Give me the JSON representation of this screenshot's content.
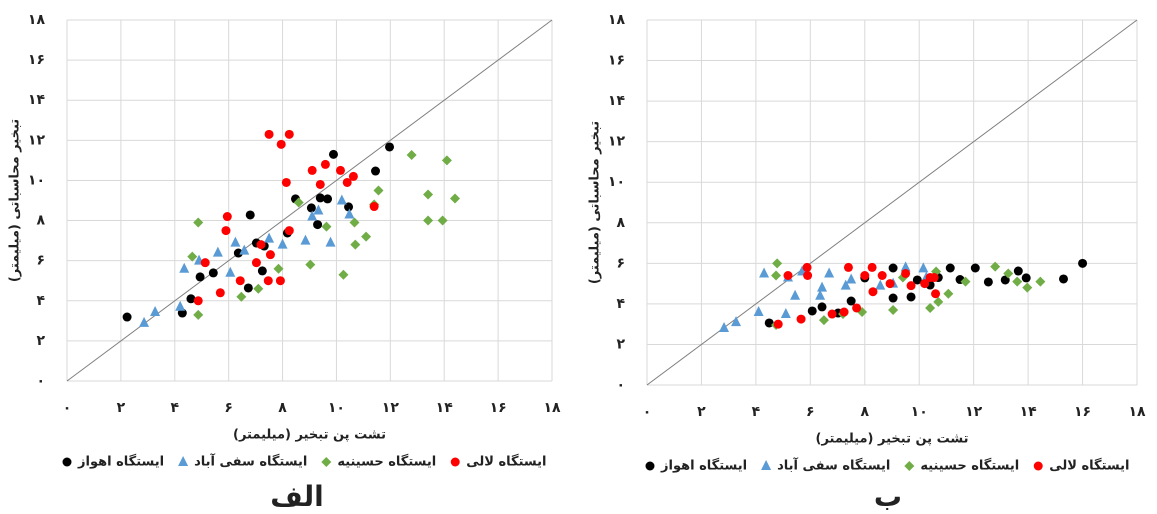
{
  "chart_data": [
    {
      "type": "scatter",
      "panel_label": "الف",
      "x_label": "تشت پن تبخیر (میلیمتر)",
      "y_label": "تبخیر محاسباتی (میلیمتر)",
      "xlim": [
        0,
        18
      ],
      "ylim": [
        0,
        18
      ],
      "xticks": [
        {
          "value": 0,
          "label": "۰"
        },
        {
          "value": 2,
          "label": "۲"
        },
        {
          "value": 4,
          "label": "۴"
        },
        {
          "value": 6,
          "label": "۶"
        },
        {
          "value": 8,
          "label": "۸"
        },
        {
          "value": 10,
          "label": "۱۰"
        },
        {
          "value": 12,
          "label": "۱۲"
        },
        {
          "value": 14,
          "label": "۱۴"
        },
        {
          "value": 16,
          "label": "۱۶"
        },
        {
          "value": 18,
          "label": "۱۸"
        }
      ],
      "yticks": [
        {
          "value": 0,
          "label": "۰"
        },
        {
          "value": 2,
          "label": "۲"
        },
        {
          "value": 4,
          "label": "۴"
        },
        {
          "value": 6,
          "label": "۶"
        },
        {
          "value": 8,
          "label": "۸"
        },
        {
          "value": 10,
          "label": "۱۰"
        },
        {
          "value": 12,
          "label": "۱۲"
        },
        {
          "value": 14,
          "label": "۱۴"
        },
        {
          "value": 16,
          "label": "۱۶"
        },
        {
          "value": 18,
          "label": "۱۸"
        }
      ],
      "grid": true,
      "series": [
        {
          "name": "ایستگاه اهواز",
          "color": "#000000",
          "marker": "circle",
          "x": [
            2.23,
            4.28,
            4.6,
            4.94,
            5.43,
            6.36,
            6.8,
            7.03,
            7.25,
            6.73,
            8.18,
            8.48,
            9.07,
            9.4,
            9.67,
            9.89,
            10.45,
            11.45,
            11.97,
            7.32,
            9.3
          ],
          "values": [
            3.19,
            3.39,
            4.1,
            5.19,
            5.39,
            6.38,
            8.28,
            6.88,
            5.49,
            4.64,
            7.38,
            9.08,
            8.63,
            9.13,
            9.08,
            11.3,
            8.68,
            10.47,
            11.67,
            6.73,
            7.8
          ]
        },
        {
          "name": "ایستگاه سفی آباد",
          "color": "#5b9bd5",
          "marker": "triangle",
          "x": [
            2.86,
            3.27,
            4.2,
            4.35,
            4.9,
            5.6,
            6.06,
            6.25,
            6.58,
            7.5,
            8.0,
            8.85,
            9.1,
            9.33,
            9.78,
            10.48,
            10.2
          ],
          "values": [
            2.9,
            3.44,
            3.7,
            5.6,
            6.0,
            6.4,
            5.4,
            6.9,
            6.5,
            7.1,
            6.8,
            7.0,
            8.2,
            8.5,
            6.9,
            8.3,
            9.0
          ]
        },
        {
          "name": "ایستگاه حسینیه",
          "color": "#70ad47",
          "marker": "diamond",
          "x": [
            4.87,
            4.87,
            4.65,
            6.47,
            7.1,
            7.85,
            8.6,
            9.03,
            9.63,
            10.26,
            10.7,
            11.1,
            11.4,
            11.56,
            12.79,
            13.4,
            14.1,
            14.4,
            13.4,
            13.94,
            10.67
          ],
          "values": [
            3.3,
            7.9,
            6.2,
            4.2,
            4.6,
            5.6,
            8.9,
            5.8,
            7.7,
            5.3,
            6.8,
            7.2,
            8.8,
            9.5,
            11.27,
            9.3,
            11.0,
            9.1,
            8.0,
            8.0,
            7.9
          ]
        },
        {
          "name": "ایستگاه لالی",
          "color": "#ff0000",
          "marker": "circle",
          "x": [
            7.5,
            8.25,
            7.95,
            4.87,
            5.13,
            5.69,
            5.95,
            5.9,
            6.43,
            7.03,
            7.55,
            7.47,
            7.92,
            8.14,
            8.25,
            9.1,
            9.4,
            9.59,
            10.15,
            10.4,
            10.63,
            11.4,
            7.2
          ],
          "values": [
            12.3,
            12.3,
            11.8,
            4.0,
            5.9,
            4.4,
            8.2,
            7.5,
            5.0,
            5.9,
            6.3,
            5.0,
            5.0,
            9.9,
            7.5,
            10.5,
            9.8,
            10.8,
            10.5,
            9.9,
            10.2,
            8.7,
            6.8
          ]
        }
      ]
    },
    {
      "type": "scatter",
      "panel_label": "ب",
      "x_label": "تشت پن تبخیر (میلیمتر)",
      "y_label": "تبخیر محاسباتی (میلیمتر)",
      "xlim": [
        0,
        18
      ],
      "ylim": [
        0,
        18
      ],
      "xticks": [
        {
          "value": 0,
          "label": "۰"
        },
        {
          "value": 2,
          "label": "۲"
        },
        {
          "value": 4,
          "label": "۴"
        },
        {
          "value": 6,
          "label": "۶"
        },
        {
          "value": 8,
          "label": "۸"
        },
        {
          "value": 10,
          "label": "۱۰"
        },
        {
          "value": 12,
          "label": "۱۲"
        },
        {
          "value": 14,
          "label": "۱۴"
        },
        {
          "value": 16,
          "label": "۱۶"
        },
        {
          "value": 18,
          "label": "۱۸"
        }
      ],
      "yticks": [
        {
          "value": 0,
          "label": "۰"
        },
        {
          "value": 2,
          "label": "۲"
        },
        {
          "value": 4,
          "label": "۴"
        },
        {
          "value": 6,
          "label": "۶"
        },
        {
          "value": 8,
          "label": "۸"
        },
        {
          "value": 10,
          "label": "۱۰"
        },
        {
          "value": 12,
          "label": "۱۲"
        },
        {
          "value": 14,
          "label": "۱۴"
        },
        {
          "value": 16,
          "label": "۱۶"
        },
        {
          "value": 18,
          "label": "۱۸"
        }
      ],
      "grid": true,
      "series": [
        {
          "name": "ایستگاه اهواز",
          "color": "#000000",
          "marker": "circle",
          "x": [
            4.49,
            6.07,
            6.43,
            7.02,
            7.5,
            8.0,
            9.04,
            9.04,
            9.7,
            9.93,
            10.4,
            11.14,
            12.06,
            12.54,
            13.16,
            13.64,
            13.93,
            15.3,
            16.0,
            10.7,
            11.5
          ],
          "values": [
            3.06,
            3.65,
            3.85,
            3.55,
            4.14,
            5.28,
            4.29,
            5.77,
            4.34,
            5.18,
            4.93,
            5.77,
            5.77,
            5.08,
            5.18,
            5.62,
            5.28,
            5.23,
            6.0,
            5.3,
            5.2
          ]
        },
        {
          "name": "ایستگاه سفی آباد",
          "color": "#5b9bd5",
          "marker": "triangle",
          "x": [
            2.83,
            3.27,
            4.1,
            4.3,
            5.1,
            5.18,
            5.44,
            5.7,
            6.36,
            6.43,
            6.69,
            7.3,
            7.5,
            8.57,
            9.04,
            9.5,
            10.15,
            10.26
          ],
          "values": [
            2.81,
            3.1,
            3.6,
            5.5,
            3.5,
            5.3,
            4.4,
            5.6,
            4.4,
            4.8,
            5.5,
            4.9,
            5.2,
            4.9,
            5.0,
            5.8,
            5.75,
            5.3
          ]
        },
        {
          "name": "ایستگاه حسینیه",
          "color": "#70ad47",
          "marker": "diamond",
          "x": [
            4.74,
            4.74,
            4.78,
            6.5,
            7.2,
            7.9,
            9.04,
            10.4,
            10.7,
            11.07,
            11.7,
            12.79,
            13.6,
            13.97,
            14.45,
            10.62,
            13.27,
            9.4
          ],
          "values": [
            2.96,
            5.4,
            6.0,
            3.2,
            3.5,
            3.6,
            3.7,
            3.8,
            4.1,
            4.5,
            5.1,
            5.84,
            5.1,
            4.8,
            5.1,
            5.6,
            5.5,
            5.3
          ]
        },
        {
          "name": "ایستگاه لالی",
          "color": "#ff0000",
          "marker": "circle",
          "x": [
            4.82,
            5.18,
            5.66,
            5.88,
            5.9,
            6.8,
            7.24,
            7.4,
            7.7,
            8.0,
            8.3,
            8.27,
            8.64,
            8.93,
            9.5,
            9.7,
            10.2,
            10.55,
            10.6,
            10.4
          ],
          "values": [
            3.0,
            5.4,
            3.25,
            5.8,
            5.4,
            3.5,
            3.6,
            5.8,
            3.8,
            5.4,
            4.6,
            5.8,
            5.4,
            5.0,
            5.5,
            4.9,
            5.0,
            5.3,
            4.5,
            5.3
          ]
        }
      ]
    }
  ]
}
